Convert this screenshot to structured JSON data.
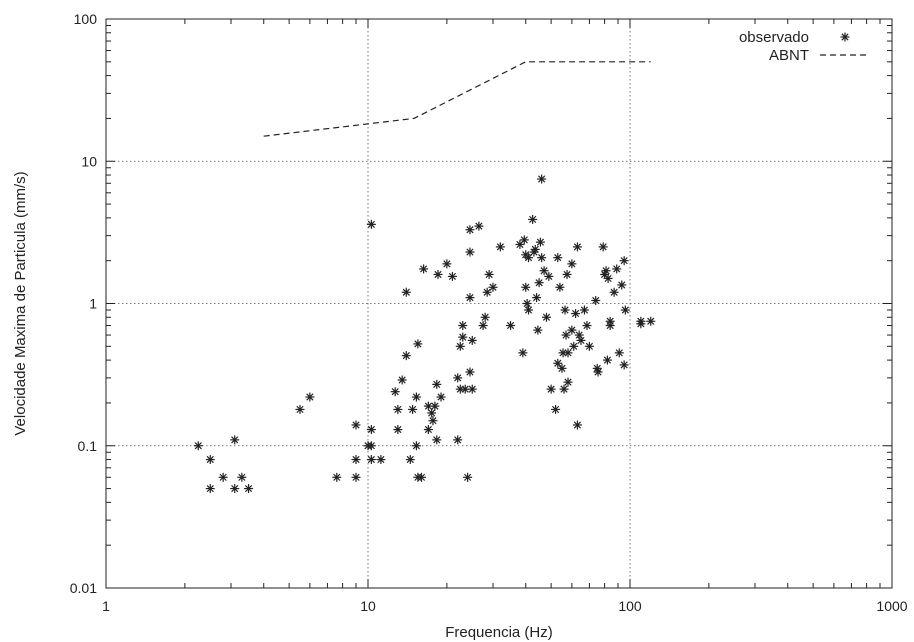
{
  "chart_data": {
    "type": "scatter",
    "xlabel": "Frequencia (Hz)",
    "ylabel": "Velocidade Maxima de Particula (mm/s)",
    "xscale": "log",
    "yscale": "log",
    "xlim": [
      1,
      1000
    ],
    "ylim": [
      0.01,
      100
    ],
    "xticks": [
      "1",
      "10",
      "100",
      "1000"
    ],
    "yticks": [
      "0.01",
      "0.1",
      "1",
      "10",
      "100"
    ],
    "grid": true,
    "legend_position": "top-right",
    "series": [
      {
        "name": "observado",
        "marker": "asterisk",
        "color": "#222222",
        "points": [
          [
            2.25,
            0.1
          ],
          [
            2.5,
            0.08
          ],
          [
            2.5,
            0.05
          ],
          [
            2.8,
            0.06
          ],
          [
            3.1,
            0.11
          ],
          [
            3.1,
            0.05
          ],
          [
            3.3,
            0.06
          ],
          [
            3.5,
            0.05
          ],
          [
            5.5,
            0.18
          ],
          [
            6.0,
            0.22
          ],
          [
            7.6,
            0.06
          ],
          [
            9.0,
            0.14
          ],
          [
            9.0,
            0.08
          ],
          [
            9.0,
            0.06
          ],
          [
            10.0,
            0.1
          ],
          [
            10.3,
            0.1
          ],
          [
            10.3,
            0.13
          ],
          [
            10.3,
            0.08
          ],
          [
            10.3,
            3.6
          ],
          [
            11.2,
            0.08
          ],
          [
            12.7,
            0.24
          ],
          [
            13.0,
            0.13
          ],
          [
            13.0,
            0.18
          ],
          [
            13.5,
            0.29
          ],
          [
            14.0,
            0.43
          ],
          [
            14.0,
            1.2
          ],
          [
            14.5,
            0.08
          ],
          [
            14.8,
            0.18
          ],
          [
            15.3,
            0.22
          ],
          [
            15.3,
            0.1
          ],
          [
            15.5,
            0.52
          ],
          [
            15.5,
            0.06
          ],
          [
            16.0,
            0.06
          ],
          [
            16.3,
            1.75
          ],
          [
            17.0,
            0.13
          ],
          [
            17.0,
            0.19
          ],
          [
            17.5,
            0.17
          ],
          [
            17.7,
            0.15
          ],
          [
            18.0,
            0.19
          ],
          [
            18.3,
            0.11
          ],
          [
            18.3,
            0.27
          ],
          [
            18.5,
            1.6
          ],
          [
            19.0,
            0.22
          ],
          [
            20.0,
            1.9
          ],
          [
            21.0,
            1.55
          ],
          [
            22.0,
            0.3
          ],
          [
            22.0,
            0.11
          ],
          [
            22.5,
            0.25
          ],
          [
            22.5,
            0.5
          ],
          [
            23.0,
            0.7
          ],
          [
            23.0,
            0.58
          ],
          [
            23.5,
            0.25
          ],
          [
            24.0,
            0.06
          ],
          [
            24.5,
            0.33
          ],
          [
            24.5,
            3.3
          ],
          [
            24.5,
            2.3
          ],
          [
            24.5,
            1.1
          ],
          [
            25.0,
            0.25
          ],
          [
            25.0,
            0.55
          ],
          [
            26.5,
            3.5
          ],
          [
            27.5,
            0.7
          ],
          [
            28.0,
            0.8
          ],
          [
            28.5,
            1.2
          ],
          [
            29.0,
            1.6
          ],
          [
            30.0,
            1.3
          ],
          [
            32.0,
            2.5
          ],
          [
            35.0,
            0.7
          ],
          [
            38.0,
            2.6
          ],
          [
            39.0,
            0.45
          ],
          [
            39.5,
            2.8
          ],
          [
            40.0,
            2.2
          ],
          [
            40.0,
            1.3
          ],
          [
            40.5,
            1.0
          ],
          [
            41.0,
            0.9
          ],
          [
            41.0,
            2.1
          ],
          [
            42.5,
            3.9
          ],
          [
            43.0,
            2.3
          ],
          [
            43.5,
            2.4
          ],
          [
            44.0,
            1.1
          ],
          [
            44.5,
            0.65
          ],
          [
            45.0,
            1.4
          ],
          [
            45.5,
            2.7
          ],
          [
            46.0,
            2.1
          ],
          [
            46.0,
            7.5
          ],
          [
            47.0,
            1.7
          ],
          [
            48.0,
            0.8
          ],
          [
            49.0,
            1.55
          ],
          [
            50.0,
            0.25
          ],
          [
            52.0,
            0.18
          ],
          [
            53.0,
            2.1
          ],
          [
            53.0,
            0.38
          ],
          [
            54.0,
            1.3
          ],
          [
            55.0,
            0.35
          ],
          [
            55.5,
            0.45
          ],
          [
            56.0,
            0.25
          ],
          [
            56.5,
            0.9
          ],
          [
            57.0,
            0.6
          ],
          [
            57.5,
            1.6
          ],
          [
            58.0,
            0.45
          ],
          [
            58.0,
            0.28
          ],
          [
            60.0,
            0.65
          ],
          [
            60.0,
            1.9
          ],
          [
            61.0,
            0.5
          ],
          [
            62.0,
            0.85
          ],
          [
            63.0,
            0.14
          ],
          [
            63.0,
            2.5
          ],
          [
            64.0,
            0.6
          ],
          [
            65.0,
            0.55
          ],
          [
            67.0,
            0.9
          ],
          [
            68.5,
            0.7
          ],
          [
            70.0,
            0.5
          ],
          [
            74.0,
            1.05
          ],
          [
            75.0,
            0.35
          ],
          [
            75.5,
            0.33
          ],
          [
            79.0,
            2.5
          ],
          [
            80.0,
            1.6
          ],
          [
            81.0,
            1.7
          ],
          [
            82.0,
            0.4
          ],
          [
            82.5,
            1.5
          ],
          [
            84.0,
            0.75
          ],
          [
            84.0,
            0.7
          ],
          [
            87.0,
            1.2
          ],
          [
            89.0,
            1.75
          ],
          [
            91.0,
            0.45
          ],
          [
            93.0,
            1.35
          ],
          [
            95.0,
            2.0
          ],
          [
            95.0,
            0.37
          ],
          [
            96.0,
            0.9
          ],
          [
            110.0,
            0.75
          ],
          [
            110.0,
            0.72
          ],
          [
            120.0,
            0.75
          ]
        ]
      },
      {
        "name": "ABNT",
        "style": "dashed",
        "color": "#222222",
        "points": [
          [
            4,
            15
          ],
          [
            15,
            20
          ],
          [
            40,
            50
          ],
          [
            120,
            50
          ]
        ]
      }
    ]
  }
}
